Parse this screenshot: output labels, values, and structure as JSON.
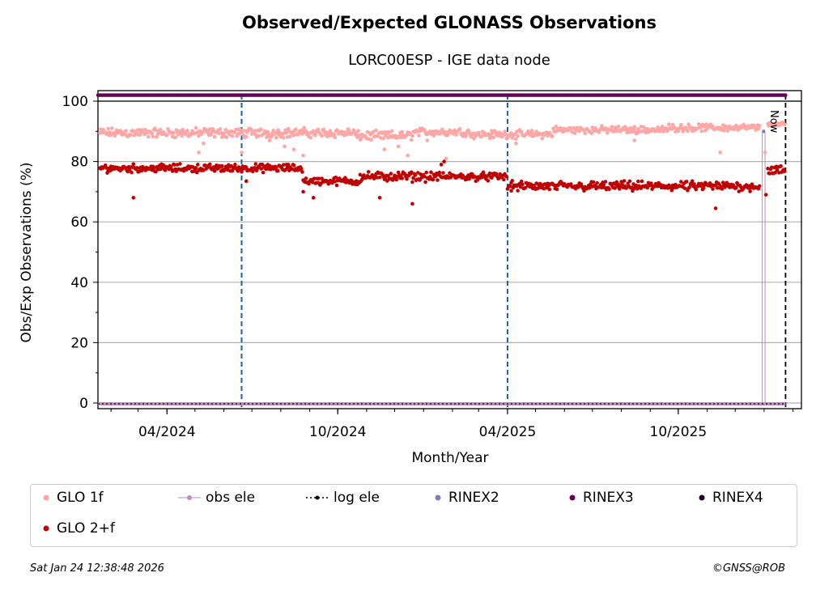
{
  "chart_data": {
    "type": "scatter",
    "title": "Observed/Expected GLONASS Observations",
    "subtitle": "LORC00ESP - IGE data node",
    "xlabel": "Month/Year",
    "ylabel": "Obs/Exp Observations (%)",
    "ylim": [
      0,
      100
    ],
    "xlim": [
      "2024-01-18",
      "2026-02-10"
    ],
    "x_ticks": [
      "04/2024",
      "10/2024",
      "04/2025",
      "10/2025"
    ],
    "y_ticks": [
      0,
      20,
      40,
      60,
      80,
      100
    ],
    "grid": "horizontal",
    "vlines_dashed_blue": [
      "2024-06-20",
      "2025-04-01"
    ],
    "now_line": "2026-01-24",
    "now_label": "Now",
    "series": [
      {
        "name": "GLO 1f",
        "color": "#ffa6a6",
        "segments": [
          {
            "start": "2024-01-20",
            "end": "2024-10-20",
            "level": 89.5,
            "jitter": 1.2
          },
          {
            "start": "2024-10-20",
            "end": "2024-12-20",
            "level": 88.5,
            "jitter": 1.2
          },
          {
            "start": "2024-12-20",
            "end": "2025-02-20",
            "level": 89.8,
            "jitter": 1.0
          },
          {
            "start": "2025-02-20",
            "end": "2025-05-20",
            "level": 89.0,
            "jitter": 1.0
          },
          {
            "start": "2025-05-20",
            "end": "2025-09-20",
            "level": 90.5,
            "jitter": 0.9
          },
          {
            "start": "2025-09-20",
            "end": "2025-12-28",
            "level": 91.2,
            "jitter": 0.9
          },
          {
            "start": "2026-01-05",
            "end": "2026-01-24",
            "level": 92.3,
            "jitter": 0.5
          }
        ],
        "outliers": [
          [
            "2024-05-05",
            83
          ],
          [
            "2024-05-10",
            86
          ],
          [
            "2024-06-20",
            83
          ],
          [
            "2024-07-20",
            87
          ],
          [
            "2024-08-05",
            85
          ],
          [
            "2024-08-15",
            84
          ],
          [
            "2024-08-25",
            82
          ],
          [
            "2024-11-20",
            84
          ],
          [
            "2024-12-05",
            85
          ],
          [
            "2024-12-15",
            82
          ],
          [
            "2025-01-05",
            87
          ],
          [
            "2025-01-25",
            81
          ],
          [
            "2025-04-10",
            86
          ],
          [
            "2025-08-15",
            87
          ],
          [
            "2025-11-15",
            83
          ],
          [
            "2026-01-02",
            83
          ]
        ]
      },
      {
        "name": "GLO 2+f",
        "color": "#c00000",
        "segments": [
          {
            "start": "2024-01-20",
            "end": "2024-08-25",
            "level": 77.8,
            "jitter": 1.0
          },
          {
            "start": "2024-08-25",
            "end": "2024-10-25",
            "level": 73.5,
            "jitter": 1.0
          },
          {
            "start": "2024-10-25",
            "end": "2025-01-10",
            "level": 75.0,
            "jitter": 1.2
          },
          {
            "start": "2025-01-10",
            "end": "2025-04-01",
            "level": 75.0,
            "jitter": 1.0
          },
          {
            "start": "2025-04-01",
            "end": "2025-12-28",
            "level": 71.8,
            "jitter": 1.2
          },
          {
            "start": "2026-01-05",
            "end": "2026-01-24",
            "level": 77.0,
            "jitter": 1.2
          }
        ],
        "outliers": [
          [
            "2024-02-25",
            68
          ],
          [
            "2024-06-25",
            73.5
          ],
          [
            "2024-08-25",
            70
          ],
          [
            "2024-09-05",
            68
          ],
          [
            "2024-11-15",
            68
          ],
          [
            "2024-12-20",
            66
          ],
          [
            "2025-01-20",
            79
          ],
          [
            "2025-01-23",
            80
          ],
          [
            "2025-04-05",
            73
          ],
          [
            "2025-11-10",
            64.5
          ],
          [
            "2026-01-03",
            69
          ]
        ]
      },
      {
        "name": "obs ele",
        "color": "#c288c8"
      },
      {
        "name": "log ele",
        "color": "#000000"
      },
      {
        "name": "RINEX2",
        "color": "#8878b8"
      },
      {
        "name": "RINEX3",
        "color": "#660055",
        "level": 102,
        "start": "2024-01-18",
        "end": "2026-01-24"
      },
      {
        "name": "RINEX4",
        "color": "#220022"
      }
    ]
  },
  "legend": [
    {
      "label": "GLO 1f",
      "color": "#ffa6a6",
      "kind": "dot"
    },
    {
      "label": "obs ele",
      "color": "#c288c8",
      "kind": "line-dot"
    },
    {
      "label": "log ele",
      "color": "#000000",
      "kind": "dotted"
    },
    {
      "label": "RINEX2",
      "color": "#8878b8",
      "kind": "dot"
    },
    {
      "label": "RINEX3",
      "color": "#660055",
      "kind": "dot"
    },
    {
      "label": "RINEX4",
      "color": "#220022",
      "kind": "dot"
    },
    {
      "label": "GLO 2+f",
      "color": "#c00000",
      "kind": "dot"
    }
  ],
  "footer": {
    "timestamp": "Sat Jan 24 12:38:48 2026",
    "credit": "©GNSS@ROB"
  }
}
